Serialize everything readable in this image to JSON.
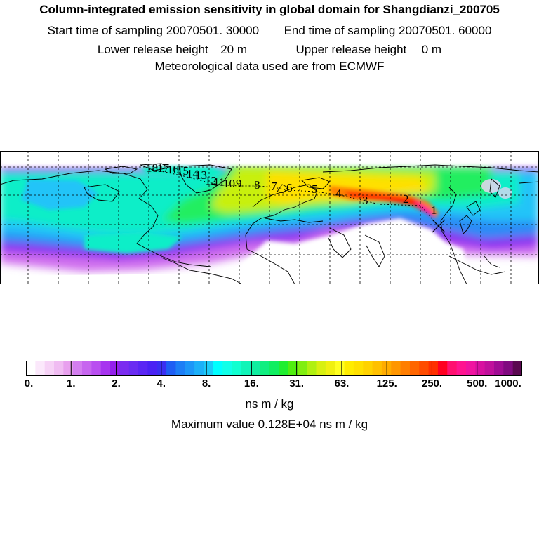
{
  "header": {
    "title": "Column-integrated emission sensitivity in global domain for Shangdianzi_200705",
    "start_label": "Start time of sampling",
    "start_value": "20070501. 30000",
    "end_label": "End time of sampling",
    "end_value": "20070501. 60000",
    "lower_label": "Lower release height",
    "lower_value": "20 m",
    "upper_label": "Upper release height",
    "upper_value": "0 m",
    "meteo": "Meteorological data used are from ECMWF"
  },
  "map": {
    "trajectory_labels": [
      "1",
      "2",
      "3",
      "4",
      "5",
      "6",
      "7",
      "8",
      "9",
      "10",
      "11",
      "12",
      "13",
      "14",
      "15",
      "16",
      "17",
      "18"
    ],
    "grid": true
  },
  "colorbar": {
    "ticks": [
      "0.",
      "1.",
      "2.",
      "4.",
      "8.",
      "16.",
      "31.",
      "63.",
      "125.",
      "250.",
      "500.",
      "1000."
    ],
    "colors": [
      "#ffffff",
      "#fbe8fb",
      "#f6d2f6",
      "#f0bcf2",
      "#e8a0ee",
      "#d47ef0",
      "#c766ef",
      "#b94ff0",
      "#a734ef",
      "#9420ec",
      "#7b2cf0",
      "#6a2cf2",
      "#5a26f4",
      "#4a22f4",
      "#3a2ef2",
      "#1e5ef4",
      "#1c7ef6",
      "#1c96f8",
      "#1cb0f8",
      "#1ccaf8",
      "#00ffff",
      "#10ffe8",
      "#10ffd0",
      "#10f4b8",
      "#10eea0",
      "#10ee80",
      "#10ee60",
      "#20ee30",
      "#50ee10",
      "#80ee10",
      "#b0f010",
      "#d8f010",
      "#f0f010",
      "#ffff20",
      "#ffec00",
      "#ffe000",
      "#ffd200",
      "#ffc000",
      "#ffac00",
      "#ff9600",
      "#ff7e00",
      "#ff6600",
      "#ff4c00",
      "#ff3000",
      "#ff0020",
      "#ff1070",
      "#ff1490",
      "#f014a0",
      "#d810a0",
      "#c0109c",
      "#a00c94",
      "#800a80",
      "#5a0850"
    ]
  },
  "unit": "ns m / kg",
  "max_label": "Maximum value  0.128E+04 ns m / kg"
}
